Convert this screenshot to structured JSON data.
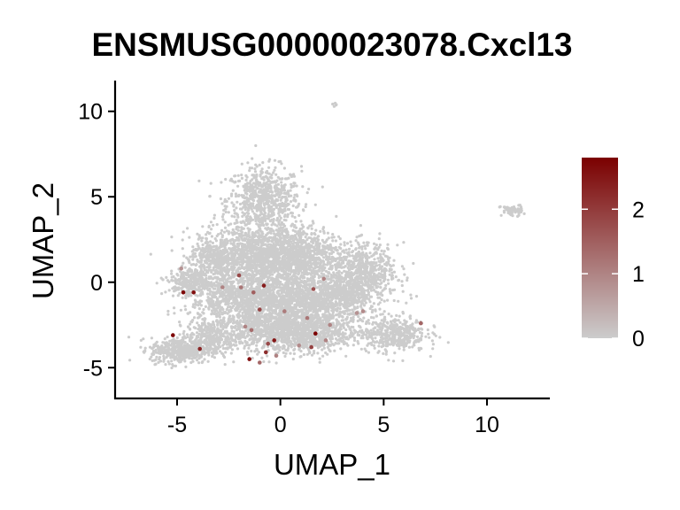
{
  "chart_data": {
    "type": "scatter",
    "title": "ENSMUSG00000023078.Cxcl13",
    "xlabel": "UMAP_1",
    "ylabel": "UMAP_2",
    "xlim": [
      -8,
      13
    ],
    "ylim": [
      -6.8,
      11.8
    ],
    "x_ticks": [
      -5,
      0,
      5,
      10
    ],
    "y_ticks": [
      -5,
      0,
      5,
      10
    ],
    "x_tick_labels": [
      "-5",
      "0",
      "5",
      "10"
    ],
    "y_tick_labels": [
      "-5",
      "0",
      "5",
      "10"
    ],
    "grid": false,
    "legend_position": "right",
    "colorscale": {
      "low_color": "#cccccc",
      "high_color": "#7b0000",
      "min": 0,
      "max": 2.8,
      "ticks": [
        0,
        1,
        2
      ],
      "tick_labels": [
        "0",
        "1",
        "2"
      ]
    },
    "background_points_color": "#cccccc",
    "expressing_points": [
      {
        "x": -4.8,
        "y": 0.8,
        "value": 0.8
      },
      {
        "x": -4.7,
        "y": -0.6,
        "value": 2.7
      },
      {
        "x": -4.2,
        "y": -0.6,
        "value": 2.6
      },
      {
        "x": -2.8,
        "y": -0.3,
        "value": 1.0
      },
      {
        "x": -2.0,
        "y": 0.4,
        "value": 1.8
      },
      {
        "x": -1.9,
        "y": -0.3,
        "value": 1.2
      },
      {
        "x": -1.3,
        "y": -0.6,
        "value": 1.5
      },
      {
        "x": -0.8,
        "y": -0.2,
        "value": 2.4
      },
      {
        "x": -1.0,
        "y": -1.6,
        "value": 1.9
      },
      {
        "x": 1.6,
        "y": -0.4,
        "value": 1.7
      },
      {
        "x": 2.1,
        "y": 0.2,
        "value": 1.0
      },
      {
        "x": 0.2,
        "y": -1.7,
        "value": 1.1
      },
      {
        "x": -1.7,
        "y": -2.6,
        "value": 1.0
      },
      {
        "x": -0.3,
        "y": -3.4,
        "value": 2.5
      },
      {
        "x": -0.6,
        "y": -3.6,
        "value": 1.8
      },
      {
        "x": -1.4,
        "y": -2.8,
        "value": 1.3
      },
      {
        "x": 1.7,
        "y": -3.0,
        "value": 2.8
      },
      {
        "x": 1.3,
        "y": -2.1,
        "value": 1.2
      },
      {
        "x": 2.2,
        "y": -3.4,
        "value": 1.0
      },
      {
        "x": 1.5,
        "y": -3.8,
        "value": 1.9
      },
      {
        "x": 0.9,
        "y": -3.7,
        "value": 0.9
      },
      {
        "x": -0.7,
        "y": -4.1,
        "value": 2.2
      },
      {
        "x": -0.2,
        "y": -4.3,
        "value": 1.0
      },
      {
        "x": -1.5,
        "y": -4.5,
        "value": 2.6
      },
      {
        "x": -1.0,
        "y": -4.7,
        "value": 1.4
      },
      {
        "x": -5.2,
        "y": -3.1,
        "value": 2.7
      },
      {
        "x": -3.9,
        "y": -3.9,
        "value": 2.3
      },
      {
        "x": 6.8,
        "y": -2.4,
        "value": 1.4
      },
      {
        "x": 4.0,
        "y": -1.7,
        "value": 0.9
      },
      {
        "x": 3.7,
        "y": -1.8,
        "value": 0.8
      },
      {
        "x": 2.4,
        "y": -2.5,
        "value": 1.0
      }
    ]
  }
}
